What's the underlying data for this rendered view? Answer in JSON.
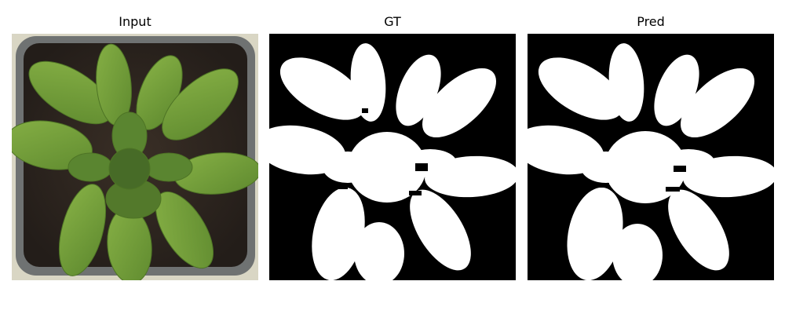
{
  "panels": [
    {
      "title": "Input"
    },
    {
      "title": "GT"
    },
    {
      "title": "Pred"
    }
  ],
  "colors": {
    "background": "#ffffff",
    "mask_foreground": "#ffffff",
    "mask_background": "#000000",
    "pot_frame": "#d9d6c4",
    "pot_rim": "#6f7272",
    "soil": "#2c2520",
    "leaf": "#6d9a36"
  }
}
